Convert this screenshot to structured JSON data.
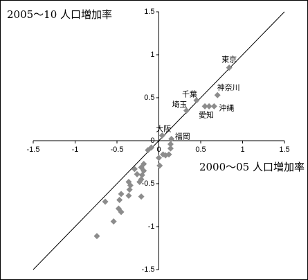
{
  "chart_data": {
    "type": "scatter",
    "x_label": "2000〜05 人口増加率",
    "y_label": "2005〜10 人口増加率",
    "xlim": [
      -1.5,
      1.5
    ],
    "ylim": [
      -1.5,
      1.5
    ],
    "xticks": [
      -1.5,
      -1,
      -0.5,
      0,
      0.5,
      1,
      1.5
    ],
    "yticks": [
      -1.5,
      -1,
      -0.5,
      0,
      0.5,
      1,
      1.5
    ],
    "diagonal": true,
    "series": [
      {
        "color": "#8c8c8c",
        "x": [
          0.84,
          0.7,
          0.45,
          0.33,
          0.66,
          0.55,
          0.04,
          0.15,
          0.6,
          0.14,
          0.14,
          0.12,
          0.08,
          0.05,
          0.0,
          0.01,
          -0.09,
          -0.13,
          -0.18,
          -0.21,
          -0.18,
          -0.2,
          -0.21,
          -0.23,
          -0.29,
          -0.26,
          -0.36,
          -0.34,
          -0.35,
          -0.36,
          -0.21,
          -0.45,
          -0.47,
          -0.45,
          -0.48,
          -0.64,
          -0.54,
          -0.74
        ],
        "values": [
          0.85,
          0.53,
          0.47,
          0.35,
          0.4,
          0.4,
          0.06,
          0.02,
          0.4,
          -0.04,
          -0.09,
          -0.16,
          -0.17,
          -0.16,
          -0.2,
          -0.29,
          -0.08,
          -0.11,
          -0.27,
          -0.31,
          -0.35,
          -0.4,
          -0.45,
          -0.48,
          -0.33,
          -0.39,
          -0.48,
          -0.52,
          -0.57,
          -0.64,
          -0.65,
          -0.62,
          -0.69,
          -0.83,
          -0.79,
          -0.71,
          -0.94,
          -1.11
        ],
        "labels": [
          "東京",
          "神奈川",
          "千葉",
          "埼玉",
          "沖縄",
          "愛知",
          "大阪",
          "福岡",
          null,
          null,
          null,
          null,
          null,
          null,
          null,
          null,
          null,
          null,
          null,
          null,
          null,
          null,
          null,
          null,
          null,
          null,
          null,
          null,
          null,
          null,
          null,
          null,
          null,
          null,
          null,
          null,
          null,
          null
        ]
      }
    ]
  }
}
